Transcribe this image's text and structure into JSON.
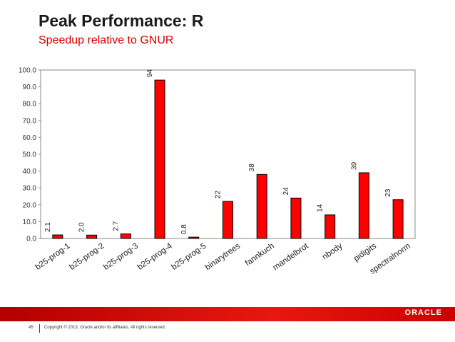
{
  "slide": {
    "title": "Peak Performance: R",
    "subtitle": "Speedup relative to GNUR",
    "page_number": "45",
    "copyright": "Copyright © 2013, Oracle and/or its affiliates. All rights reserved.",
    "logo_text": "ORACLE"
  },
  "colors": {
    "bar_fill": "#ff0000",
    "bar_stroke": "#000000",
    "accent": "#d40000",
    "footer_bar": "#e8170f"
  },
  "chart_data": {
    "type": "bar",
    "title": "",
    "xlabel": "",
    "ylabel": "",
    "ylim": [
      0,
      100
    ],
    "yticks": [
      "0.0",
      "10.0",
      "20.0",
      "30.0",
      "40.0",
      "50.0",
      "60.0",
      "70.0",
      "80.0",
      "90.0",
      "100.0"
    ],
    "grid": false,
    "categories": [
      "b25-prog-1",
      "b25-prog-2",
      "b25-prog-3",
      "b25-prog-4",
      "b25-prog-5",
      "binarytrees",
      "fannkuch",
      "mandelbrot",
      "nbody",
      "pidigits",
      "spectralnorm"
    ],
    "values": [
      2.1,
      2.0,
      2.7,
      94,
      0.8,
      22,
      38,
      24,
      14,
      39,
      23
    ],
    "data_labels": [
      "2.1",
      "2.0",
      "2.7",
      "94",
      "0.8",
      "22",
      "38",
      "24",
      "14",
      "39",
      "23"
    ]
  }
}
